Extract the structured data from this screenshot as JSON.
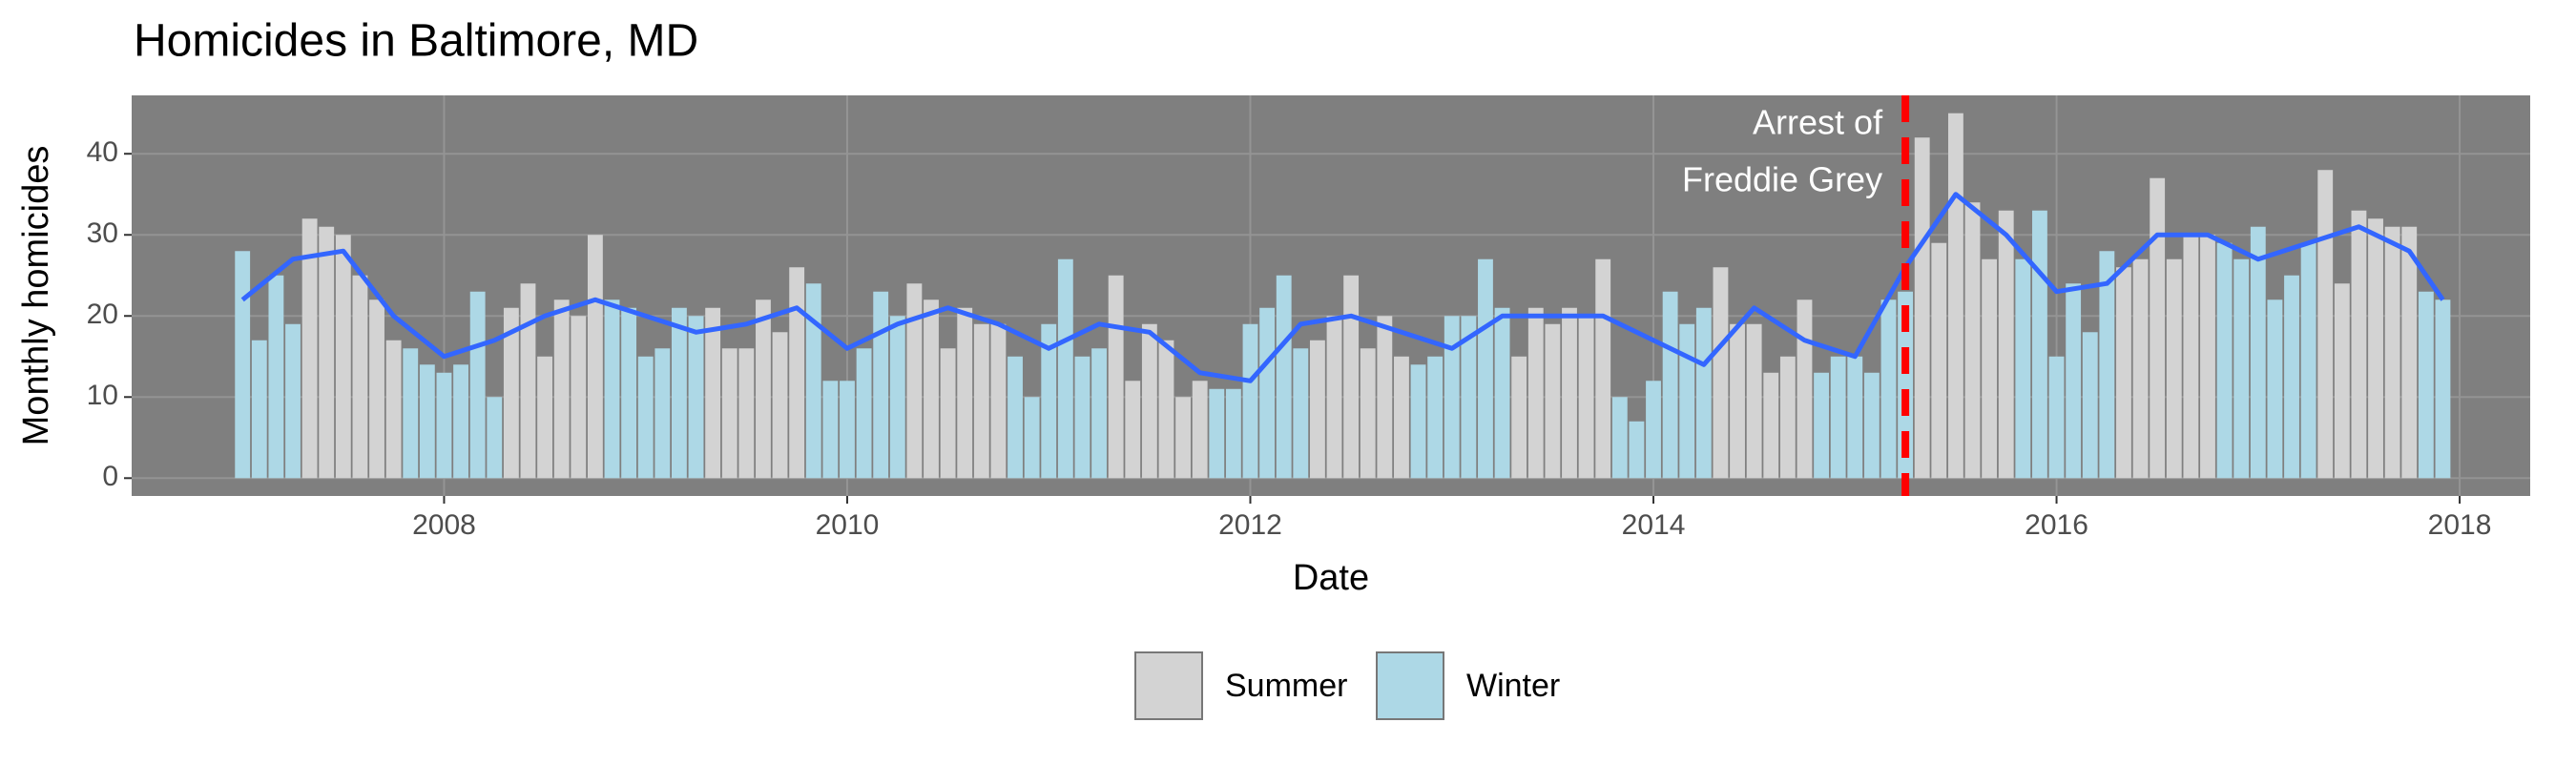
{
  "chart_data": {
    "type": "bar",
    "title": "Homicides in Baltimore, MD",
    "x_label": "Date",
    "y_label": "Monthly homicides",
    "x": [
      "2007-01",
      "2007-02",
      "2007-03",
      "2007-04",
      "2007-05",
      "2007-06",
      "2007-07",
      "2007-08",
      "2007-09",
      "2007-10",
      "2007-11",
      "2007-12",
      "2008-01",
      "2008-02",
      "2008-03",
      "2008-04",
      "2008-05",
      "2008-06",
      "2008-07",
      "2008-08",
      "2008-09",
      "2008-10",
      "2008-11",
      "2008-12",
      "2009-01",
      "2009-02",
      "2009-03",
      "2009-04",
      "2009-05",
      "2009-06",
      "2009-07",
      "2009-08",
      "2009-09",
      "2009-10",
      "2009-11",
      "2009-12",
      "2010-01",
      "2010-02",
      "2010-03",
      "2010-04",
      "2010-05",
      "2010-06",
      "2010-07",
      "2010-08",
      "2010-09",
      "2010-10",
      "2010-11",
      "2010-12",
      "2011-01",
      "2011-02",
      "2011-03",
      "2011-04",
      "2011-05",
      "2011-06",
      "2011-07",
      "2011-08",
      "2011-09",
      "2011-10",
      "2011-11",
      "2011-12",
      "2012-01",
      "2012-02",
      "2012-03",
      "2012-04",
      "2012-05",
      "2012-06",
      "2012-07",
      "2012-08",
      "2012-09",
      "2012-10",
      "2012-11",
      "2012-12",
      "2013-01",
      "2013-02",
      "2013-03",
      "2013-04",
      "2013-05",
      "2013-06",
      "2013-07",
      "2013-08",
      "2013-09",
      "2013-10",
      "2013-11",
      "2013-12",
      "2014-01",
      "2014-02",
      "2014-03",
      "2014-04",
      "2014-05",
      "2014-06",
      "2014-07",
      "2014-08",
      "2014-09",
      "2014-10",
      "2014-11",
      "2014-12",
      "2015-01",
      "2015-02",
      "2015-03",
      "2015-04",
      "2015-05",
      "2015-06",
      "2015-07",
      "2015-08",
      "2015-09",
      "2015-10",
      "2015-11",
      "2015-12",
      "2016-01",
      "2016-02",
      "2016-03",
      "2016-04",
      "2016-05",
      "2016-06",
      "2016-07",
      "2016-08",
      "2016-09",
      "2016-10",
      "2016-11",
      "2016-12",
      "2017-01",
      "2017-02",
      "2017-03",
      "2017-04",
      "2017-05",
      "2017-06",
      "2017-07",
      "2017-08",
      "2017-09",
      "2017-10",
      "2017-11",
      "2017-12"
    ],
    "series": [
      {
        "name": "Summer",
        "color": "#d3d3d3",
        "values": [
          null,
          null,
          null,
          null,
          32,
          31,
          30,
          25,
          22,
          17,
          null,
          null,
          null,
          null,
          null,
          null,
          21,
          24,
          15,
          22,
          20,
          30,
          null,
          null,
          null,
          null,
          null,
          null,
          21,
          16,
          16,
          22,
          18,
          26,
          null,
          null,
          null,
          null,
          null,
          null,
          24,
          22,
          16,
          21,
          19,
          19,
          null,
          null,
          null,
          null,
          null,
          null,
          25,
          12,
          19,
          17,
          10,
          12,
          null,
          null,
          null,
          null,
          null,
          null,
          17,
          20,
          25,
          16,
          20,
          15,
          null,
          null,
          null,
          null,
          null,
          null,
          15,
          21,
          19,
          21,
          20,
          27,
          null,
          null,
          null,
          null,
          null,
          null,
          26,
          19,
          19,
          13,
          15,
          22,
          null,
          null,
          null,
          null,
          null,
          null,
          42,
          29,
          45,
          34,
          27,
          33,
          null,
          null,
          null,
          null,
          null,
          null,
          26,
          27,
          37,
          27,
          30,
          30,
          null,
          null,
          null,
          null,
          null,
          null,
          38,
          24,
          33,
          32,
          31,
          31,
          null,
          null
        ]
      },
      {
        "name": "Winter",
        "color": "#add8e6",
        "values": [
          28,
          17,
          25,
          19,
          null,
          null,
          null,
          null,
          null,
          null,
          16,
          14,
          13,
          14,
          23,
          10,
          null,
          null,
          null,
          null,
          null,
          null,
          22,
          21,
          15,
          16,
          21,
          20,
          null,
          null,
          null,
          null,
          null,
          null,
          24,
          12,
          12,
          16,
          23,
          20,
          null,
          null,
          null,
          null,
          null,
          null,
          15,
          10,
          19,
          27,
          15,
          16,
          null,
          null,
          null,
          null,
          null,
          null,
          11,
          11,
          19,
          21,
          25,
          16,
          null,
          null,
          null,
          null,
          null,
          null,
          14,
          15,
          20,
          20,
          27,
          21,
          null,
          null,
          null,
          null,
          null,
          null,
          10,
          7,
          12,
          23,
          19,
          21,
          null,
          null,
          null,
          null,
          null,
          null,
          13,
          15,
          15,
          13,
          22,
          23,
          null,
          null,
          null,
          null,
          null,
          null,
          27,
          33,
          15,
          24,
          18,
          28,
          null,
          null,
          null,
          null,
          null,
          null,
          29,
          27,
          31,
          22,
          25,
          29,
          null,
          null,
          null,
          null,
          null,
          null,
          23,
          22
        ]
      }
    ],
    "trend": {
      "color": "#3366ff",
      "x": [
        "2007-01",
        "2007-04",
        "2007-07",
        "2007-10",
        "2008-01",
        "2008-04",
        "2008-07",
        "2008-10",
        "2009-01",
        "2009-04",
        "2009-07",
        "2009-10",
        "2010-01",
        "2010-04",
        "2010-07",
        "2010-10",
        "2011-01",
        "2011-04",
        "2011-07",
        "2011-10",
        "2012-01",
        "2012-04",
        "2012-07",
        "2012-10",
        "2013-01",
        "2013-04",
        "2013-07",
        "2013-10",
        "2014-01",
        "2014-04",
        "2014-07",
        "2014-10",
        "2015-01",
        "2015-04",
        "2015-07",
        "2015-10",
        "2016-01",
        "2016-04",
        "2016-07",
        "2016-10",
        "2017-01",
        "2017-04",
        "2017-07",
        "2017-10",
        "2017-12"
      ],
      "values": [
        22,
        27,
        28,
        20,
        15,
        17,
        20,
        22,
        20,
        18,
        19,
        21,
        16,
        19,
        21,
        19,
        16,
        19,
        18,
        13,
        12,
        19,
        20,
        18,
        16,
        20,
        20,
        20,
        17,
        14,
        21,
        17,
        15,
        26,
        35,
        30,
        23,
        24,
        30,
        30,
        27,
        29,
        31,
        28,
        22
      ]
    },
    "event": {
      "x": "2015-04",
      "color": "#ff0000",
      "label": [
        "Arrest of",
        "Freddie Grey"
      ]
    },
    "xlim": [
      2006.45,
      2018.35
    ],
    "xticks": [
      2008,
      2010,
      2012,
      2014,
      2016,
      2018
    ],
    "ylim": [
      -2.2,
      47.2
    ],
    "yticks": [
      0,
      10,
      20,
      30,
      40
    ],
    "grid": true,
    "legend": "bottom"
  }
}
